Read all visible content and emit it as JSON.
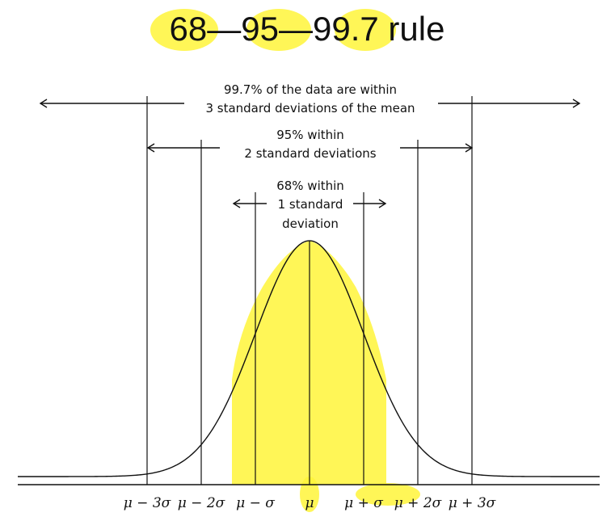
{
  "title": "68—95—99.7 rule",
  "annotations": {
    "within3_line1": "99.7% of the data are within",
    "within3_line2": "3 standard deviations of the mean",
    "within2_line1": "95% within",
    "within2_line2": "2 standard deviations",
    "within1_line1": "68% within",
    "within1_line2": "1 standard",
    "within1_line3": "deviation"
  },
  "axis_labels": [
    "μ − 3σ",
    "μ − 2σ",
    "μ − σ",
    "μ",
    "μ + σ",
    "μ + 2σ",
    "μ + 3σ"
  ],
  "colors": {
    "ink": "#111111",
    "highlight": "#fff43a",
    "background": "#ffffff"
  }
}
